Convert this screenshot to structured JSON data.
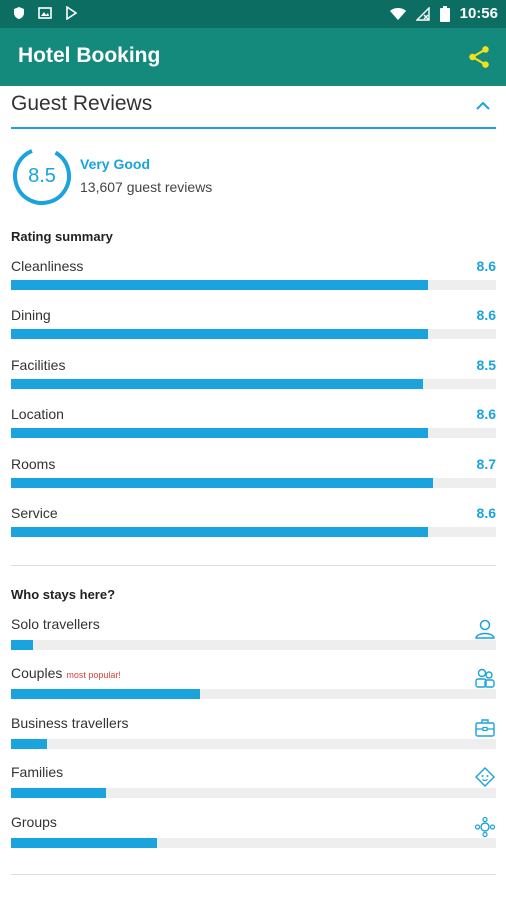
{
  "status_bar": {
    "time": "10:56",
    "icons": [
      "shield-icon",
      "image-icon",
      "play-store-icon",
      "wifi-icon",
      "no-signal-icon",
      "battery-icon"
    ]
  },
  "app_bar": {
    "title": "Hotel Booking",
    "share_icon": "share-icon"
  },
  "section": {
    "title": "Guest Reviews",
    "toggle_icon": "chevron-up-icon"
  },
  "score": {
    "value": "8.5",
    "word": "Very Good",
    "count": "13,607 guest reviews"
  },
  "rating_summary": {
    "title": "Rating summary",
    "items": [
      {
        "label": "Cleanliness",
        "value": "8.6",
        "fill": 0.86
      },
      {
        "label": "Dining",
        "value": "8.6",
        "fill": 0.86
      },
      {
        "label": "Facilities",
        "value": "8.5",
        "fill": 0.85
      },
      {
        "label": "Location",
        "value": "8.6",
        "fill": 0.86
      },
      {
        "label": "Rooms",
        "value": "8.7",
        "fill": 0.87
      },
      {
        "label": "Service",
        "value": "8.6",
        "fill": 0.86
      }
    ]
  },
  "who_stays": {
    "title": "Who stays here?",
    "items": [
      {
        "label": "Solo travellers",
        "badge": "",
        "fill": 0.045,
        "icon": "person-icon"
      },
      {
        "label": "Couples",
        "badge": "most popular!",
        "fill": 0.39,
        "icon": "couple-icon"
      },
      {
        "label": "Business travellers",
        "badge": "",
        "fill": 0.075,
        "icon": "briefcase-icon"
      },
      {
        "label": "Families",
        "badge": "",
        "fill": 0.195,
        "icon": "baby-face-icon"
      },
      {
        "label": "Groups",
        "badge": "",
        "fill": 0.3,
        "icon": "group-icon"
      }
    ]
  },
  "colors": {
    "status_bar": "#0c6e62",
    "app_bar": "#138a7b",
    "accent": "#1aa3dc",
    "share": "#f5e11a",
    "popular": "#e0403c"
  }
}
